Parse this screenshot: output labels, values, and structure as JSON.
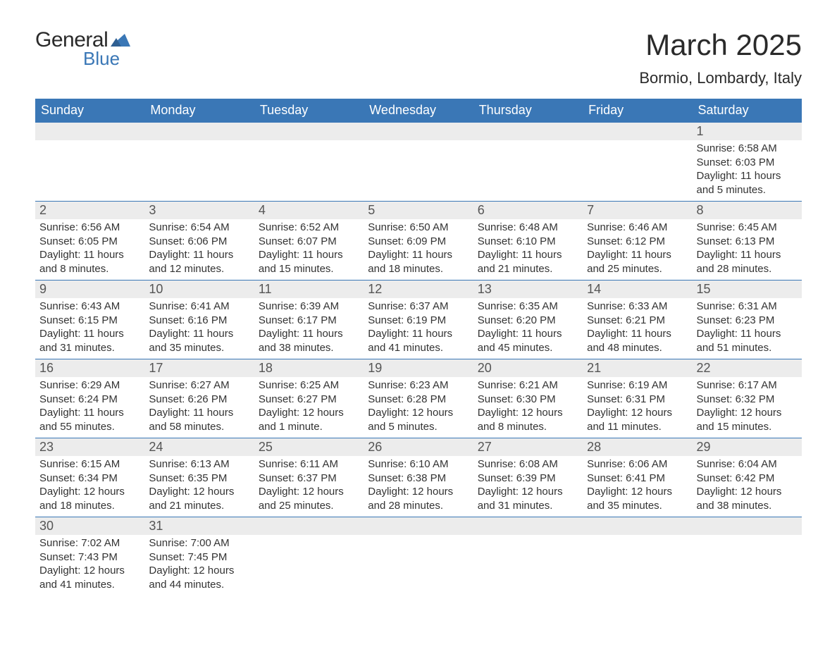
{
  "logo": {
    "text1": "General",
    "text2": "Blue"
  },
  "title": "March 2025",
  "location": "Bormio, Lombardy, Italy",
  "colors": {
    "header_bg": "#3a77b6",
    "header_text": "#ffffff",
    "daynum_bg": "#ececec",
    "text": "#333333",
    "border": "#3a77b6"
  },
  "dayHeaders": [
    "Sunday",
    "Monday",
    "Tuesday",
    "Wednesday",
    "Thursday",
    "Friday",
    "Saturday"
  ],
  "weeks": [
    [
      null,
      null,
      null,
      null,
      null,
      null,
      {
        "n": "1",
        "sr": "Sunrise: 6:58 AM",
        "ss": "Sunset: 6:03 PM",
        "dl1": "Daylight: 11 hours",
        "dl2": "and 5 minutes."
      }
    ],
    [
      {
        "n": "2",
        "sr": "Sunrise: 6:56 AM",
        "ss": "Sunset: 6:05 PM",
        "dl1": "Daylight: 11 hours",
        "dl2": "and 8 minutes."
      },
      {
        "n": "3",
        "sr": "Sunrise: 6:54 AM",
        "ss": "Sunset: 6:06 PM",
        "dl1": "Daylight: 11 hours",
        "dl2": "and 12 minutes."
      },
      {
        "n": "4",
        "sr": "Sunrise: 6:52 AM",
        "ss": "Sunset: 6:07 PM",
        "dl1": "Daylight: 11 hours",
        "dl2": "and 15 minutes."
      },
      {
        "n": "5",
        "sr": "Sunrise: 6:50 AM",
        "ss": "Sunset: 6:09 PM",
        "dl1": "Daylight: 11 hours",
        "dl2": "and 18 minutes."
      },
      {
        "n": "6",
        "sr": "Sunrise: 6:48 AM",
        "ss": "Sunset: 6:10 PM",
        "dl1": "Daylight: 11 hours",
        "dl2": "and 21 minutes."
      },
      {
        "n": "7",
        "sr": "Sunrise: 6:46 AM",
        "ss": "Sunset: 6:12 PM",
        "dl1": "Daylight: 11 hours",
        "dl2": "and 25 minutes."
      },
      {
        "n": "8",
        "sr": "Sunrise: 6:45 AM",
        "ss": "Sunset: 6:13 PM",
        "dl1": "Daylight: 11 hours",
        "dl2": "and 28 minutes."
      }
    ],
    [
      {
        "n": "9",
        "sr": "Sunrise: 6:43 AM",
        "ss": "Sunset: 6:15 PM",
        "dl1": "Daylight: 11 hours",
        "dl2": "and 31 minutes."
      },
      {
        "n": "10",
        "sr": "Sunrise: 6:41 AM",
        "ss": "Sunset: 6:16 PM",
        "dl1": "Daylight: 11 hours",
        "dl2": "and 35 minutes."
      },
      {
        "n": "11",
        "sr": "Sunrise: 6:39 AM",
        "ss": "Sunset: 6:17 PM",
        "dl1": "Daylight: 11 hours",
        "dl2": "and 38 minutes."
      },
      {
        "n": "12",
        "sr": "Sunrise: 6:37 AM",
        "ss": "Sunset: 6:19 PM",
        "dl1": "Daylight: 11 hours",
        "dl2": "and 41 minutes."
      },
      {
        "n": "13",
        "sr": "Sunrise: 6:35 AM",
        "ss": "Sunset: 6:20 PM",
        "dl1": "Daylight: 11 hours",
        "dl2": "and 45 minutes."
      },
      {
        "n": "14",
        "sr": "Sunrise: 6:33 AM",
        "ss": "Sunset: 6:21 PM",
        "dl1": "Daylight: 11 hours",
        "dl2": "and 48 minutes."
      },
      {
        "n": "15",
        "sr": "Sunrise: 6:31 AM",
        "ss": "Sunset: 6:23 PM",
        "dl1": "Daylight: 11 hours",
        "dl2": "and 51 minutes."
      }
    ],
    [
      {
        "n": "16",
        "sr": "Sunrise: 6:29 AM",
        "ss": "Sunset: 6:24 PM",
        "dl1": "Daylight: 11 hours",
        "dl2": "and 55 minutes."
      },
      {
        "n": "17",
        "sr": "Sunrise: 6:27 AM",
        "ss": "Sunset: 6:26 PM",
        "dl1": "Daylight: 11 hours",
        "dl2": "and 58 minutes."
      },
      {
        "n": "18",
        "sr": "Sunrise: 6:25 AM",
        "ss": "Sunset: 6:27 PM",
        "dl1": "Daylight: 12 hours",
        "dl2": "and 1 minute."
      },
      {
        "n": "19",
        "sr": "Sunrise: 6:23 AM",
        "ss": "Sunset: 6:28 PM",
        "dl1": "Daylight: 12 hours",
        "dl2": "and 5 minutes."
      },
      {
        "n": "20",
        "sr": "Sunrise: 6:21 AM",
        "ss": "Sunset: 6:30 PM",
        "dl1": "Daylight: 12 hours",
        "dl2": "and 8 minutes."
      },
      {
        "n": "21",
        "sr": "Sunrise: 6:19 AM",
        "ss": "Sunset: 6:31 PM",
        "dl1": "Daylight: 12 hours",
        "dl2": "and 11 minutes."
      },
      {
        "n": "22",
        "sr": "Sunrise: 6:17 AM",
        "ss": "Sunset: 6:32 PM",
        "dl1": "Daylight: 12 hours",
        "dl2": "and 15 minutes."
      }
    ],
    [
      {
        "n": "23",
        "sr": "Sunrise: 6:15 AM",
        "ss": "Sunset: 6:34 PM",
        "dl1": "Daylight: 12 hours",
        "dl2": "and 18 minutes."
      },
      {
        "n": "24",
        "sr": "Sunrise: 6:13 AM",
        "ss": "Sunset: 6:35 PM",
        "dl1": "Daylight: 12 hours",
        "dl2": "and 21 minutes."
      },
      {
        "n": "25",
        "sr": "Sunrise: 6:11 AM",
        "ss": "Sunset: 6:37 PM",
        "dl1": "Daylight: 12 hours",
        "dl2": "and 25 minutes."
      },
      {
        "n": "26",
        "sr": "Sunrise: 6:10 AM",
        "ss": "Sunset: 6:38 PM",
        "dl1": "Daylight: 12 hours",
        "dl2": "and 28 minutes."
      },
      {
        "n": "27",
        "sr": "Sunrise: 6:08 AM",
        "ss": "Sunset: 6:39 PM",
        "dl1": "Daylight: 12 hours",
        "dl2": "and 31 minutes."
      },
      {
        "n": "28",
        "sr": "Sunrise: 6:06 AM",
        "ss": "Sunset: 6:41 PM",
        "dl1": "Daylight: 12 hours",
        "dl2": "and 35 minutes."
      },
      {
        "n": "29",
        "sr": "Sunrise: 6:04 AM",
        "ss": "Sunset: 6:42 PM",
        "dl1": "Daylight: 12 hours",
        "dl2": "and 38 minutes."
      }
    ],
    [
      {
        "n": "30",
        "sr": "Sunrise: 7:02 AM",
        "ss": "Sunset: 7:43 PM",
        "dl1": "Daylight: 12 hours",
        "dl2": "and 41 minutes."
      },
      {
        "n": "31",
        "sr": "Sunrise: 7:00 AM",
        "ss": "Sunset: 7:45 PM",
        "dl1": "Daylight: 12 hours",
        "dl2": "and 44 minutes."
      },
      null,
      null,
      null,
      null,
      null
    ]
  ]
}
